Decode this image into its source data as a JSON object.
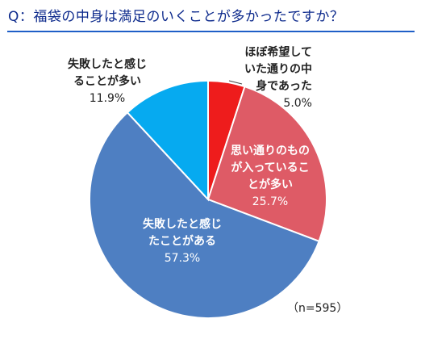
{
  "title": "Q：福袋の中身は満足のいくことが多かったですか？",
  "note": "（n=595）",
  "chart_data": {
    "type": "pie",
    "title": "Q：福袋の中身は満足のいくことが多かったですか？",
    "start_angle_deg": 0,
    "direction": "clockwise",
    "slices": [
      {
        "name": "ほぼ希望していた通りの中身であった",
        "value": 5.0,
        "pct_label": "5.0%",
        "label_lines": [
          "ほぼ希望して",
          "いた通りの中",
          "身であった"
        ],
        "color": "#ee1c1c"
      },
      {
        "name": "思い通りのものが入っていることが多い",
        "value": 25.7,
        "pct_label": "25.7%",
        "label_lines": [
          "思い通りのもの",
          "が入っているこ",
          "とが多い"
        ],
        "color": "#de5b66"
      },
      {
        "name": "失敗したと感じたことがある",
        "value": 57.3,
        "pct_label": "57.3%",
        "label_lines": [
          "失敗したと感じ",
          "たことがある"
        ],
        "color": "#4e7fc2"
      },
      {
        "name": "失敗したと感じることが多い",
        "value": 11.9,
        "pct_label": "11.9%",
        "label_lines": [
          "失敗したと感じ",
          "ることが多い"
        ],
        "color": "#06aaf0"
      }
    ],
    "sample_note": "（n=595）"
  }
}
